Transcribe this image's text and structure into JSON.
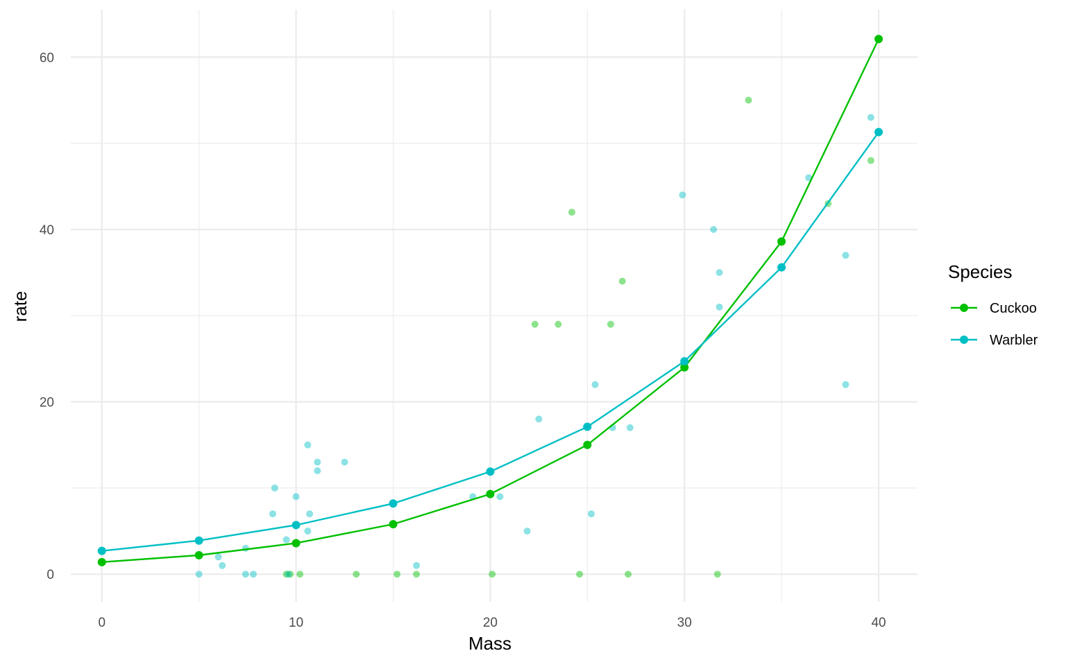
{
  "chart_data": {
    "type": "scatter",
    "title": "",
    "xlabel": "Mass",
    "ylabel": "rate",
    "xlim": [
      -1.6,
      42
    ],
    "ylim": [
      -3.2,
      65.5
    ],
    "x_ticks": [
      0,
      10,
      20,
      30,
      40
    ],
    "y_ticks": [
      0,
      20,
      40,
      60
    ],
    "grid": true,
    "legend": {
      "title": "Species",
      "position": "right"
    },
    "series": [
      {
        "name": "Cuckoo",
        "color": "#00C000",
        "fitted_line": {
          "x": [
            0,
            5,
            10,
            15,
            20,
            25,
            30,
            35,
            40
          ],
          "y": [
            1.4,
            2.2,
            3.6,
            5.8,
            9.3,
            15.0,
            24.0,
            38.6,
            62.1
          ]
        },
        "points": [
          {
            "x": 9.5,
            "y": 0
          },
          {
            "x": 9.7,
            "y": 0
          },
          {
            "x": 10.2,
            "y": 0
          },
          {
            "x": 13.1,
            "y": 0
          },
          {
            "x": 15.2,
            "y": 0
          },
          {
            "x": 16.2,
            "y": 0
          },
          {
            "x": 20.1,
            "y": 0
          },
          {
            "x": 22.3,
            "y": 29
          },
          {
            "x": 23.5,
            "y": 29
          },
          {
            "x": 24.2,
            "y": 42
          },
          {
            "x": 24.6,
            "y": 0
          },
          {
            "x": 26.2,
            "y": 29
          },
          {
            "x": 26.8,
            "y": 34
          },
          {
            "x": 27.1,
            "y": 0
          },
          {
            "x": 31.7,
            "y": 0
          },
          {
            "x": 33.3,
            "y": 55
          },
          {
            "x": 37.4,
            "y": 43
          },
          {
            "x": 39.6,
            "y": 48
          }
        ]
      },
      {
        "name": "Warbler",
        "color": "#00BFC4",
        "fitted_line": {
          "x": [
            0,
            5,
            10,
            15,
            20,
            25,
            30,
            35,
            40
          ],
          "y": [
            2.7,
            3.9,
            5.7,
            8.2,
            11.9,
            17.1,
            24.7,
            35.6,
            51.3
          ]
        },
        "points": [
          {
            "x": 5.0,
            "y": 0
          },
          {
            "x": 6.0,
            "y": 2
          },
          {
            "x": 6.2,
            "y": 1
          },
          {
            "x": 7.4,
            "y": 0
          },
          {
            "x": 7.4,
            "y": 3
          },
          {
            "x": 7.8,
            "y": 0
          },
          {
            "x": 8.8,
            "y": 7
          },
          {
            "x": 8.9,
            "y": 10
          },
          {
            "x": 9.5,
            "y": 4
          },
          {
            "x": 9.6,
            "y": 0
          },
          {
            "x": 10.0,
            "y": 9
          },
          {
            "x": 10.6,
            "y": 5
          },
          {
            "x": 10.6,
            "y": 15
          },
          {
            "x": 10.7,
            "y": 7
          },
          {
            "x": 11.1,
            "y": 12
          },
          {
            "x": 11.1,
            "y": 13
          },
          {
            "x": 12.5,
            "y": 13
          },
          {
            "x": 16.2,
            "y": 1
          },
          {
            "x": 19.1,
            "y": 9
          },
          {
            "x": 20.5,
            "y": 9
          },
          {
            "x": 21.9,
            "y": 5
          },
          {
            "x": 22.5,
            "y": 18
          },
          {
            "x": 25.2,
            "y": 7
          },
          {
            "x": 25.4,
            "y": 22
          },
          {
            "x": 26.3,
            "y": 17
          },
          {
            "x": 27.2,
            "y": 17
          },
          {
            "x": 29.9,
            "y": 44
          },
          {
            "x": 31.5,
            "y": 40
          },
          {
            "x": 31.8,
            "y": 31
          },
          {
            "x": 31.8,
            "y": 35
          },
          {
            "x": 36.4,
            "y": 46
          },
          {
            "x": 38.3,
            "y": 22
          },
          {
            "x": 38.3,
            "y": 37
          },
          {
            "x": 39.6,
            "y": 53
          }
        ]
      }
    ]
  }
}
